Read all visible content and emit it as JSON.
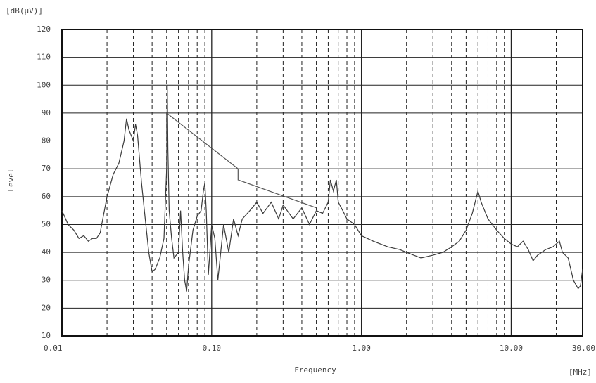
{
  "chart_data": {
    "type": "line",
    "y_unit": "[dB(µV)]",
    "ylabel": "Level",
    "xlabel": "Frequency",
    "x_unit": "[MHz]",
    "xscale": "log",
    "grid": true,
    "xlim": [
      0.01,
      30
    ],
    "ylim": [
      10,
      120
    ],
    "xticks": [
      0.01,
      {
        "value": 0.1,
        "label": "0.10"
      },
      {
        "value": 1,
        "label": "1.00"
      },
      {
        "value": 10,
        "label": "10.00"
      },
      {
        "value": 30,
        "label": "30.00"
      }
    ],
    "xminorticks": [
      0.02,
      0.03,
      0.04,
      0.05,
      0.06,
      0.07,
      0.08,
      0.09,
      0.2,
      0.3,
      0.4,
      0.5,
      0.6,
      0.7,
      0.8,
      0.9,
      2,
      3,
      4,
      5,
      6,
      7,
      8,
      9,
      20
    ],
    "yticks": [
      10,
      20,
      30,
      40,
      50,
      60,
      70,
      80,
      90,
      100,
      110,
      120
    ],
    "series": [
      {
        "color": "#3a3a3a",
        "x": [
          0.01,
          0.011,
          0.012,
          0.013,
          0.014,
          0.015,
          0.016,
          0.017,
          0.018,
          0.02,
          0.022,
          0.024,
          0.026,
          0.027,
          0.028,
          0.03,
          0.031,
          0.032,
          0.034,
          0.036,
          0.038,
          0.04,
          0.042,
          0.045,
          0.048,
          0.05,
          0.0505,
          0.051,
          0.052,
          0.054,
          0.056,
          0.06,
          0.062,
          0.064,
          0.066,
          0.068,
          0.07,
          0.075,
          0.08,
          0.085,
          0.088,
          0.09,
          0.092,
          0.095,
          0.1,
          0.105,
          0.11,
          0.12,
          0.13,
          0.14,
          0.15,
          0.16,
          0.18,
          0.2,
          0.22,
          0.25,
          0.28,
          0.3,
          0.35,
          0.4,
          0.45,
          0.5,
          0.55,
          0.6,
          0.62,
          0.65,
          0.68,
          0.7,
          0.75,
          0.8,
          0.9,
          1.0,
          1.2,
          1.5,
          1.8,
          2,
          2.5,
          3,
          3.5,
          4,
          4.5,
          5,
          5.5,
          6,
          6.3,
          7,
          8,
          9,
          10,
          11,
          12,
          13,
          14,
          15,
          17,
          19,
          21,
          22,
          24,
          26,
          28,
          29,
          30
        ],
        "values": [
          55,
          50,
          48,
          45,
          46,
          44,
          45,
          45,
          47,
          60,
          68,
          72,
          80,
          88,
          84,
          80,
          86,
          82,
          65,
          52,
          40,
          33,
          34,
          38,
          45,
          70,
          100,
          77,
          55,
          45,
          38,
          40,
          55,
          40,
          30,
          26,
          35,
          48,
          53,
          55,
          62,
          65,
          55,
          32,
          50,
          45,
          30,
          50,
          40,
          52,
          46,
          52,
          55,
          58,
          54,
          58,
          52,
          57,
          52,
          56,
          50,
          55,
          54,
          58,
          66,
          62,
          66,
          58,
          55,
          52,
          50,
          46,
          44,
          42,
          41,
          40,
          38,
          39,
          40,
          42,
          44,
          48,
          54,
          62,
          58,
          52,
          48,
          45,
          43,
          42,
          44,
          41,
          37,
          39,
          41,
          42,
          44,
          40,
          38,
          30,
          27,
          28,
          34
        ]
      },
      {
        "color": "#555555",
        "x": [
          0.05,
          0.05,
          0.15,
          0.15,
          0.5
        ],
        "values": [
          80,
          90,
          70,
          66,
          56
        ]
      }
    ]
  }
}
